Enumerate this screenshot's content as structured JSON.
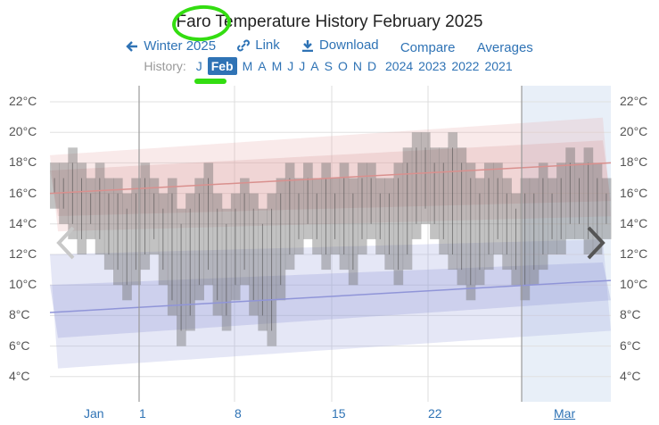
{
  "header": {
    "title": "Faro Temperature History February 2025"
  },
  "toolbar": {
    "winter_label": "Winter 2025",
    "link_label": "Link",
    "download_label": "Download",
    "compare_label": "Compare",
    "averages_label": "Averages"
  },
  "history": {
    "label": "History:",
    "months": [
      "J",
      "Feb",
      "M",
      "A",
      "M",
      "J",
      "J",
      "A",
      "S",
      "O",
      "N",
      "D"
    ],
    "active": "Feb",
    "years": [
      "2024",
      "2023",
      "2022",
      "2021"
    ]
  },
  "chart_data": {
    "type": "area",
    "y_ticks": [
      "22°C",
      "20°C",
      "18°C",
      "16°C",
      "14°C",
      "12°C",
      "10°C",
      "8°C",
      "6°C",
      "4°C"
    ],
    "ylim": [
      3,
      23
    ],
    "x_labels": [
      "Jan",
      "1",
      "8",
      "15",
      "22",
      "Mar"
    ],
    "series": [
      {
        "values": [
          [
            15,
            18
          ],
          [
            14,
            18
          ],
          [
            13,
            19
          ],
          [
            12,
            18
          ],
          [
            13,
            17
          ],
          [
            12,
            18
          ],
          [
            11,
            17
          ],
          [
            10,
            17
          ],
          [
            9,
            16
          ],
          [
            10,
            17
          ],
          [
            11,
            18
          ],
          [
            12,
            17
          ],
          [
            10,
            16
          ],
          [
            8,
            17
          ],
          [
            6,
            15
          ],
          [
            7,
            16
          ],
          [
            9,
            17
          ],
          [
            10,
            18
          ],
          [
            8,
            16
          ],
          [
            7,
            15
          ],
          [
            9,
            16
          ],
          [
            10,
            17
          ],
          [
            8,
            16
          ],
          [
            7,
            15
          ],
          [
            6,
            16
          ],
          [
            9,
            17
          ],
          [
            11,
            18
          ],
          [
            12,
            17
          ],
          [
            13,
            18
          ],
          [
            12,
            17
          ],
          [
            11,
            18
          ],
          [
            12,
            17
          ],
          [
            11,
            18
          ],
          [
            10,
            17
          ],
          [
            12,
            18
          ],
          [
            13,
            18
          ],
          [
            12,
            17
          ],
          [
            11,
            17
          ],
          [
            10,
            18
          ],
          [
            11,
            19
          ],
          [
            13,
            20
          ],
          [
            14,
            20
          ],
          [
            13,
            19
          ],
          [
            12,
            19
          ],
          [
            11,
            20
          ],
          [
            10,
            19
          ],
          [
            9,
            18
          ],
          [
            10,
            17
          ],
          [
            11,
            18
          ],
          [
            12,
            18
          ],
          [
            11,
            17
          ],
          [
            10,
            16
          ],
          [
            9,
            17
          ],
          [
            10,
            17
          ],
          [
            11,
            18
          ],
          [
            12,
            17
          ],
          [
            12,
            18
          ],
          [
            13,
            19
          ],
          [
            13,
            18
          ],
          [
            12,
            19
          ],
          [
            12,
            18
          ],
          [
            13,
            17
          ]
        ]
      }
    ]
  }
}
